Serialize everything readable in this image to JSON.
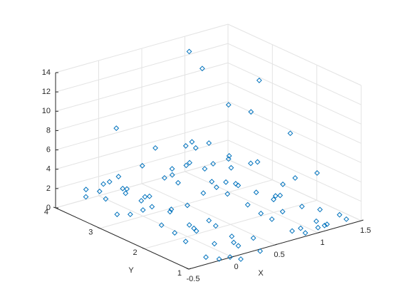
{
  "chart_data": {
    "type": "scatter3d",
    "xlabel": "X",
    "ylabel": "Y",
    "xlim": [
      -0.5,
      1.5
    ],
    "ylim": [
      1,
      4
    ],
    "zlim": [
      0,
      14
    ],
    "xticks": [
      -0.5,
      0,
      0.5,
      1,
      1.5
    ],
    "yticks": [
      1,
      2,
      3,
      4
    ],
    "zticks": [
      0,
      2,
      4,
      6,
      8,
      10,
      12,
      14
    ],
    "grid": true,
    "series": [
      {
        "color": "#0072bd",
        "x": [
          -0.2,
          0.1,
          0.25,
          -0.1,
          0.15,
          -0.25,
          0.3,
          0,
          0.05,
          -0.15,
          0.8,
          1.1,
          1.25,
          0.9,
          1.15,
          0.75,
          1.3,
          1,
          1.05,
          0.85,
          -0.2,
          0.1,
          0.25,
          -0.1,
          0.15,
          -0.25,
          0.3,
          0,
          0.05,
          -0.15,
          0.8,
          1.1,
          1.25,
          0.9,
          1.15,
          0.75,
          1.3,
          1,
          1.05,
          0.85,
          -0.2,
          0.1,
          0.25,
          -0.1,
          0.15,
          -0.25,
          0.3,
          0,
          0.05,
          -0.15,
          0.8,
          1.1,
          1.25,
          0.9,
          1.15,
          0.75,
          1.3,
          1,
          1.05,
          0.85,
          -0.2,
          0.1,
          0.25,
          -0.1,
          0.15,
          -0.25,
          0.3,
          0,
          0.05,
          -0.15,
          0.8,
          1.1,
          1.25,
          0.9,
          1.15,
          0.75,
          1.3,
          1,
          1.05,
          0.85,
          1.05,
          1.15,
          1.45,
          1.2,
          1.45,
          1.3,
          0.05,
          0.4,
          0.5,
          0.9,
          1.4,
          0.6,
          0.2
        ],
        "y": [
          0.9,
          1.05,
          0.85,
          1.2,
          1.25,
          1.1,
          1.1,
          0.8,
          1.1,
          0.75,
          0.9,
          1.05,
          0.85,
          1.2,
          1.25,
          1.1,
          1.1,
          0.8,
          1.1,
          0.75,
          1.9,
          2.05,
          1.85,
          2.2,
          2.25,
          2.1,
          2.1,
          1.8,
          2.1,
          1.75,
          1.9,
          2.05,
          1.85,
          2.2,
          2.25,
          2.1,
          2.1,
          1.8,
          2.1,
          1.75,
          2.9,
          3.05,
          2.85,
          3.2,
          3.25,
          3.1,
          3.1,
          2.8,
          3.1,
          2.75,
          2.9,
          3.05,
          2.85,
          3.2,
          3.25,
          3.1,
          3.1,
          2.8,
          3.1,
          2.75,
          3.9,
          3.95,
          3.85,
          3.7,
          3.75,
          3.8,
          3.6,
          3.98,
          3.65,
          3.55,
          3.9,
          3.95,
          3.85,
          3.7,
          3.75,
          3.8,
          3.6,
          3.98,
          3.65,
          3.55,
          4.0,
          3.9,
          3.2,
          2.9,
          2.5,
          3.6,
          3.7,
          3.5,
          3.0,
          1.6,
          1.8,
          2.3,
          2.6
        ],
        "z": [
          0.5,
          0.8,
          0.3,
          1.2,
          0.6,
          0.4,
          1.0,
          0.2,
          1.8,
          0.9,
          0.7,
          0.4,
          1.1,
          0.3,
          1.5,
          0.6,
          0.9,
          1.3,
          0.2,
          2.1,
          1.1,
          0.5,
          0.8,
          2.4,
          0.3,
          1.6,
          0.7,
          1.0,
          2.9,
          0.4,
          0.6,
          1.4,
          0.3,
          1.9,
          0.8,
          1.2,
          2.6,
          0.5,
          1.0,
          0.2,
          0.9,
          1.7,
          0.4,
          2.2,
          1.1,
          0.6,
          3.0,
          1.4,
          0.3,
          2.5,
          1.2,
          0.5,
          2.8,
          0.9,
          1.6,
          0.3,
          2.0,
          1.1,
          3.4,
          0.7,
          0.6,
          1.3,
          0.4,
          2.1,
          0.9,
          1.7,
          3.2,
          0.5,
          2.6,
          1.0,
          1.0,
          2.3,
          0.5,
          1.8,
          3.1,
          0.7,
          1.4,
          2.7,
          0.9,
          4.4,
          12.3,
          10.5,
          10,
          8,
          6,
          7,
          7.5,
          5,
          4,
          4,
          3.5,
          3.5,
          3.8
        ]
      }
    ]
  }
}
